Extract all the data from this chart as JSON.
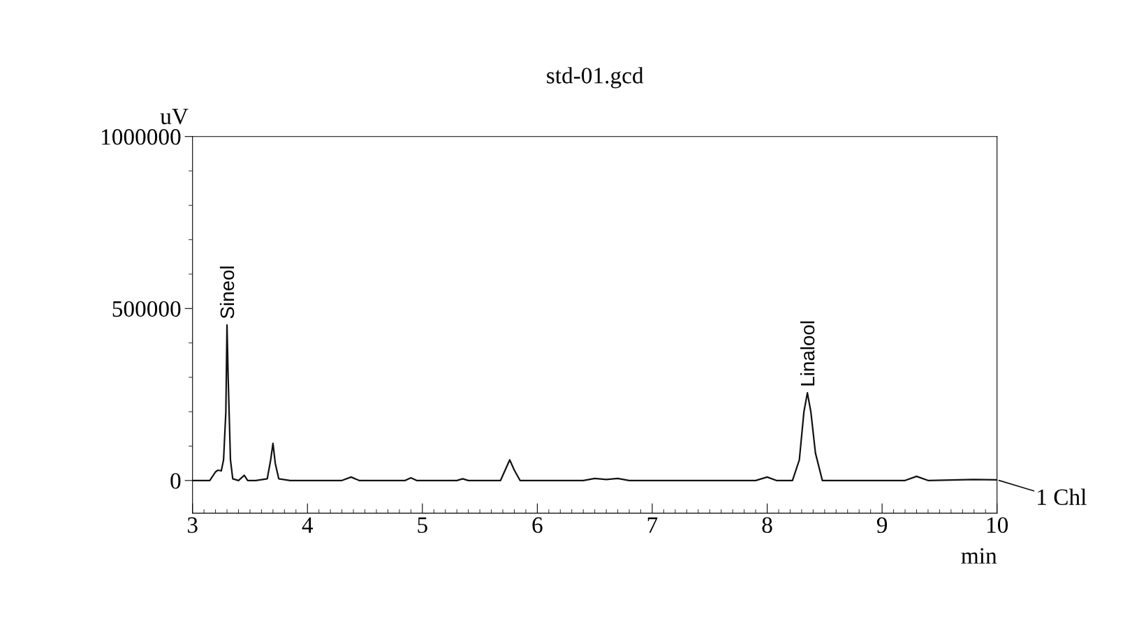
{
  "chart_data": {
    "type": "line",
    "title": "std-01.gcd",
    "xlabel": "min",
    "ylabel": "uV",
    "x": [
      3.0,
      3.15,
      3.2,
      3.22,
      3.25,
      3.27,
      3.29,
      3.3,
      3.31,
      3.33,
      3.35,
      3.4,
      3.45,
      3.48,
      3.55,
      3.65,
      3.68,
      3.7,
      3.72,
      3.75,
      3.85,
      4.3,
      4.38,
      4.45,
      4.85,
      4.9,
      4.95,
      5.3,
      5.35,
      5.4,
      5.68,
      5.72,
      5.76,
      5.8,
      5.85,
      6.4,
      6.5,
      6.6,
      6.7,
      6.8,
      7.9,
      8.0,
      8.08,
      8.22,
      8.28,
      8.32,
      8.35,
      8.38,
      8.42,
      8.48,
      8.6,
      9.2,
      9.3,
      9.4,
      9.8,
      10.0
    ],
    "series": [
      {
        "name": "1 Chl",
        "color": "#111111",
        "values": [
          0,
          0,
          25000,
          30000,
          28000,
          60000,
          200000,
          452000,
          300000,
          60000,
          5000,
          0,
          15000,
          0,
          0,
          5000,
          60000,
          108000,
          50000,
          5000,
          0,
          0,
          10000,
          0,
          0,
          8000,
          0,
          0,
          5000,
          0,
          0,
          30000,
          60000,
          30000,
          0,
          0,
          6000,
          3000,
          6000,
          0,
          0,
          10000,
          0,
          0,
          60000,
          200000,
          255000,
          200000,
          80000,
          0,
          0,
          0,
          12000,
          0,
          3000,
          2000
        ]
      }
    ],
    "annotations": [
      {
        "text": "Sineol",
        "x": 3.3,
        "y": 452000
      },
      {
        "text": "Linalool",
        "x": 8.35,
        "y": 255000
      }
    ],
    "xlim": [
      3,
      10
    ],
    "xticks": [
      3,
      4,
      5,
      6,
      7,
      8,
      9,
      10
    ],
    "ylim": [
      -95000,
      1000000
    ],
    "yticks": [
      0,
      500000,
      1000000
    ],
    "grid": false,
    "legend": "right",
    "marker": "none",
    "line_style": "solid"
  }
}
